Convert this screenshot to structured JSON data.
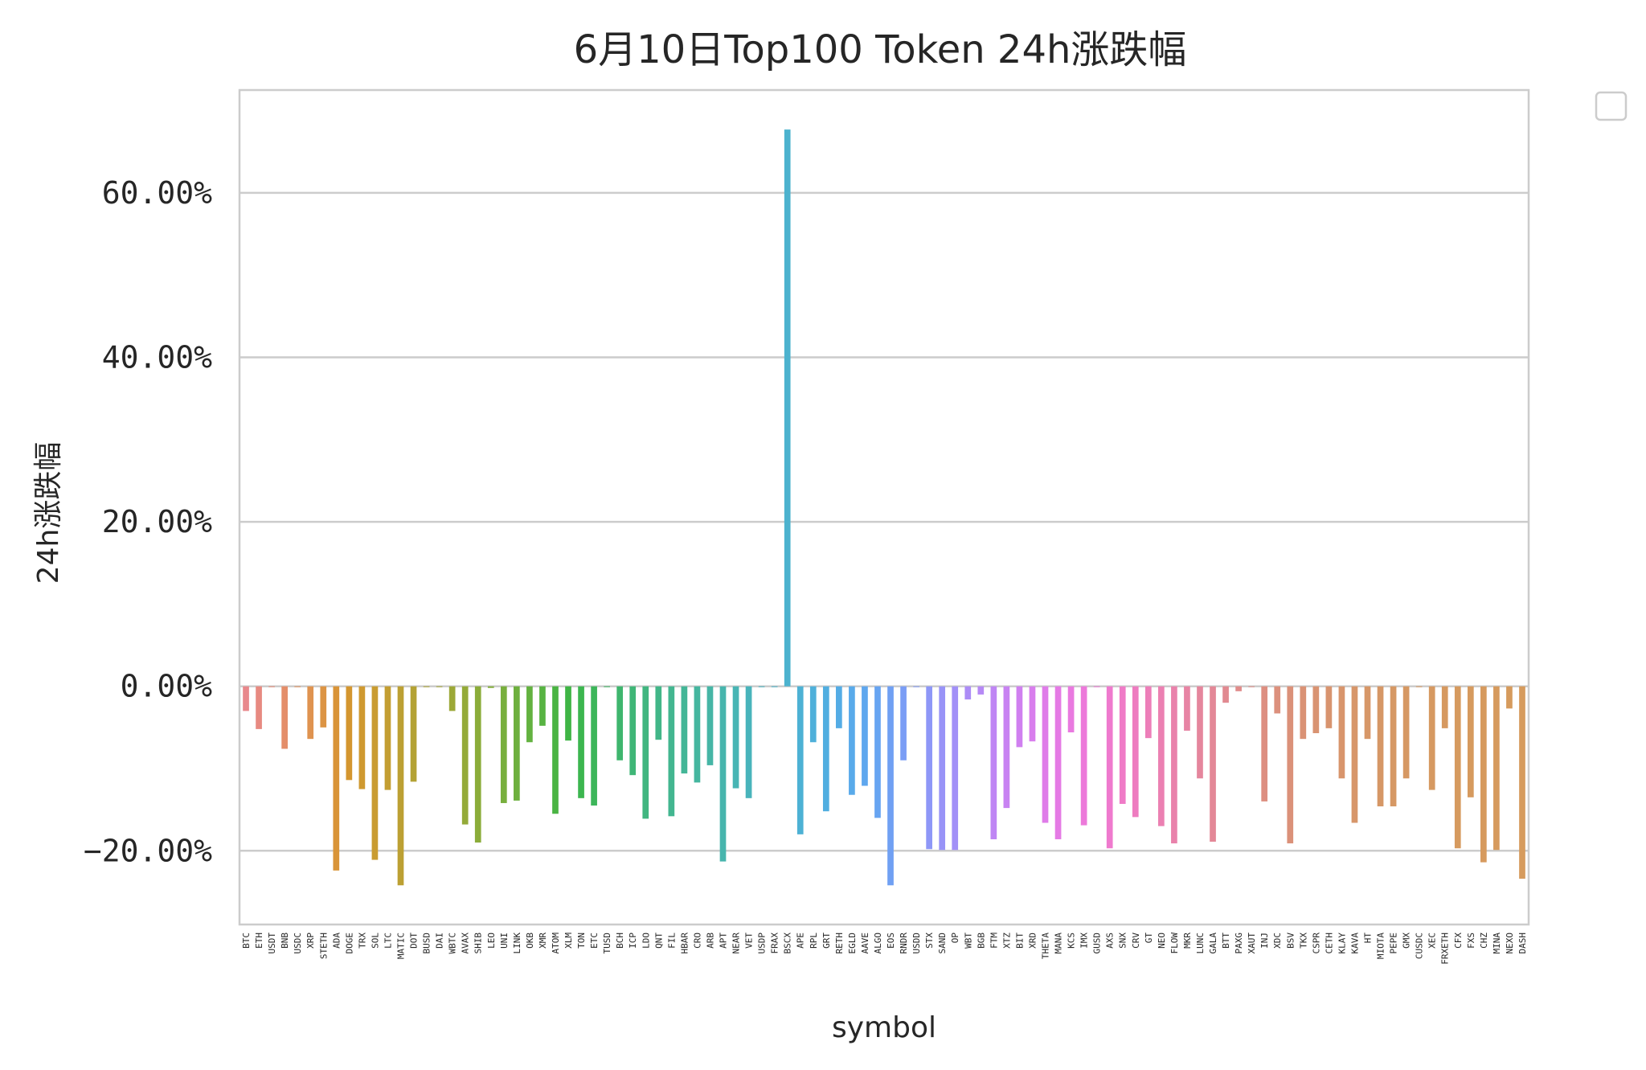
{
  "chart_data": {
    "type": "bar",
    "title": "6月10日Top100 Token 24h涨跌幅",
    "xlabel": "symbol",
    "ylabel": "24h涨跌幅",
    "yticks": [
      -20,
      0,
      20,
      40,
      60
    ],
    "ytick_labels": [
      "−20.00%",
      "0.00%",
      "20.00%",
      "40.00%",
      "60.00%"
    ],
    "ylim": [
      -29,
      73
    ],
    "grid": "horizontal",
    "legend": "empty box, outside top-right",
    "categories": [
      "BTC",
      "ETH",
      "USDT",
      "BNB",
      "USDC",
      "XRP",
      "STETH",
      "ADA",
      "DOGE",
      "TRX",
      "SOL",
      "LTC",
      "MATIC",
      "DOT",
      "BUSD",
      "DAI",
      "WBTC",
      "AVAX",
      "SHIB",
      "LEO",
      "UNI",
      "LINK",
      "OKB",
      "XMR",
      "ATOM",
      "XLM",
      "TON",
      "ETC",
      "TUSD",
      "BCH",
      "ICP",
      "LDO",
      "QNT",
      "FIL",
      "HBAR",
      "CRO",
      "ARB",
      "APT",
      "NEAR",
      "VET",
      "USDP",
      "FRAX",
      "BSCX",
      "APE",
      "RPL",
      "GRT",
      "RETH",
      "EGLD",
      "AAVE",
      "ALGO",
      "EOS",
      "RNDR",
      "USDD",
      "STX",
      "SAND",
      "OP",
      "WBT",
      "BGB",
      "FTM",
      "XTZ",
      "BIT",
      "XRD",
      "THETA",
      "MANA",
      "KCS",
      "IMX",
      "GUSD",
      "AXS",
      "SNX",
      "CRV",
      "GT",
      "NEO",
      "FLOW",
      "MKR",
      "LUNC",
      "GALA",
      "BTT",
      "PAXG",
      "XAUT",
      "INJ",
      "XDC",
      "BSV",
      "TKX",
      "CSPR",
      "CETH",
      "KLAY",
      "KAVA",
      "HT",
      "MIOTA",
      "PEPE",
      "GMX",
      "CUSDC",
      "XEC",
      "FRXETH",
      "CFX",
      "FXS",
      "CHZ",
      "MINA",
      "NEXO",
      "DASH"
    ],
    "values": [
      -3.0,
      -5.2,
      -0.1,
      -7.6,
      -0.1,
      -6.4,
      -5.0,
      -22.4,
      -11.4,
      -12.5,
      -21.1,
      -12.6,
      -24.2,
      -11.6,
      -0.1,
      -0.1,
      -3.0,
      -16.8,
      -19.0,
      -0.2,
      -14.2,
      -13.9,
      -6.8,
      -4.8,
      -15.5,
      -6.6,
      -13.6,
      -14.5,
      -0.1,
      -9.0,
      -10.8,
      -16.1,
      -6.5,
      -15.8,
      -10.6,
      -11.7,
      -9.6,
      -21.3,
      -12.4,
      -13.6,
      -0.1,
      -0.1,
      67.7,
      -18.0,
      -6.8,
      -15.2,
      -5.1,
      -13.2,
      -12.1,
      -16.0,
      -24.2,
      -9.0,
      -0.1,
      -19.8,
      -19.9,
      -19.9,
      -1.6,
      -1.0,
      -18.6,
      -14.8,
      -7.4,
      -6.7,
      -16.6,
      -18.6,
      -5.6,
      -16.9,
      -0.1,
      -19.7,
      -14.3,
      -15.9,
      -6.3,
      -17.0,
      -19.1,
      -5.4,
      -11.2,
      -18.9,
      -2.0,
      -0.6,
      -0.1,
      -14.0,
      -3.3,
      -19.1,
      -6.4,
      -5.7,
      -5.1,
      -11.2,
      -16.6,
      -6.4,
      -14.6,
      -14.6,
      -11.2,
      -0.1,
      -12.6,
      -5.1,
      -19.7,
      -13.5,
      -21.4,
      -19.9,
      -2.7,
      -23.4
    ],
    "colors": [
      "#e8888c",
      "#e78a81",
      "#e68b78",
      "#e48e6a",
      "#e2915c",
      "#df9350",
      "#dc9444",
      "#d99438",
      "#d4962f",
      "#cf9930",
      "#c99c31",
      "#c39e32",
      "#bca033",
      "#b4a234",
      "#aca435",
      "#a4a636",
      "#9ca837",
      "#94aa39",
      "#8bac3a",
      "#82ad3b",
      "#78af3d",
      "#6eb03e",
      "#63b240",
      "#57b342",
      "#4ab443",
      "#3fb545",
      "#3cb64f",
      "#3db65a",
      "#3eb664",
      "#3fb66e",
      "#40b677",
      "#41b680",
      "#42b688",
      "#43b690",
      "#44b697",
      "#45b69f",
      "#46b6a6",
      "#47b5ad",
      "#48b5b4",
      "#49b4bb",
      "#4ab4c1",
      "#4bb3c8",
      "#4cb2ce",
      "#4db1d4",
      "#4fb0da",
      "#51aee0",
      "#54ace5",
      "#59aaea",
      "#5fa7ee",
      "#67a4f1",
      "#70a0f3",
      "#7a9df5",
      "#849af6",
      "#8e97f7",
      "#9893f7",
      "#a290f7",
      "#ac8cf6",
      "#b689f5",
      "#bf86f4",
      "#c883f2",
      "#d080f0",
      "#d87eed",
      "#df7ce9",
      "#e57ae5",
      "#e979e0",
      "#ec79da",
      "#ee79d4",
      "#ef7ace",
      "#ef7bc7",
      "#ee7cc0",
      "#ed7eb9",
      "#eb80b2",
      "#e982ab",
      "#e784a4",
      "#e5869d",
      "#e38897",
      "#e18a91",
      "#e08c8b",
      "#de8e86",
      "#dd8f81",
      "#dc907d",
      "#db9179",
      "#da9275",
      "#d99372",
      "#d8946f",
      "#d8956c",
      "#d7966a",
      "#d79768",
      "#d69766",
      "#d69864",
      "#d69863",
      "#d69962",
      "#d69961",
      "#d69960",
      "#d69a5f",
      "#d69a5e",
      "#d69a5e",
      "#d69a5d",
      "#d69b5d",
      "#d69b5d"
    ]
  }
}
